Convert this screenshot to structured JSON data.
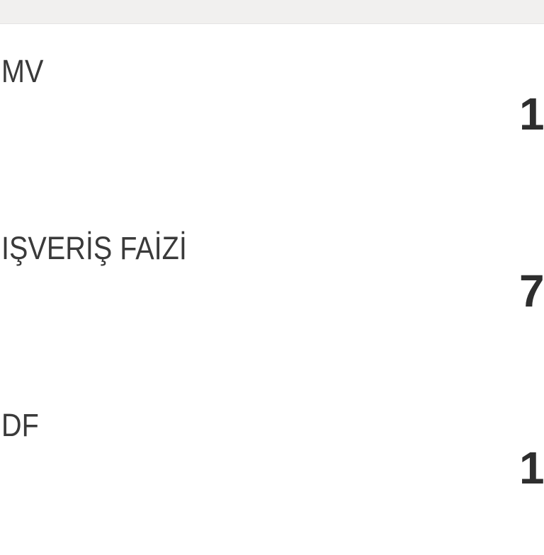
{
  "rows": [
    {
      "label": "MV",
      "value": "1"
    },
    {
      "label": "IŞVERİŞ FAİZİ",
      "value": "7"
    },
    {
      "label": "DF",
      "value": "1"
    }
  ]
}
